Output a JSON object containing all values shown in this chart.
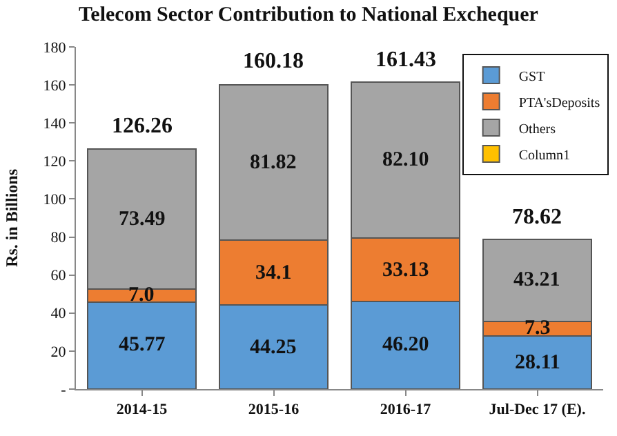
{
  "chart_data": {
    "type": "bar",
    "title": "Telecom Sector Contribution to National Exchequer",
    "ylabel": "Rs. in Billions",
    "categories": [
      "2014-15",
      "2015-16",
      "2016-17",
      "Jul-Dec 17 (E)."
    ],
    "stacked": true,
    "series": [
      {
        "name": "GST",
        "color": "#5b9bd5",
        "values": [
          45.77,
          44.25,
          46.2,
          28.11
        ],
        "value_labels": [
          "45.77",
          "44.25",
          "46.20",
          "28.11"
        ]
      },
      {
        "name": "PTA'sDeposits",
        "color": "#ed7d31",
        "values": [
          7.0,
          34.1,
          33.13,
          7.3
        ],
        "value_labels": [
          "7.0",
          "34.1",
          "33.13",
          "7.3"
        ]
      },
      {
        "name": "Others",
        "color": "#a5a5a5",
        "values": [
          73.49,
          81.82,
          82.1,
          43.21
        ],
        "value_labels": [
          "73.49",
          "81.82",
          "82.10",
          "43.21"
        ]
      },
      {
        "name": "Column1",
        "color": "#ffc000",
        "values": [
          null,
          null,
          null,
          null
        ]
      }
    ],
    "totals": [
      "126.26",
      "160.18",
      "161.43",
      "78.62"
    ],
    "ylim": [
      0,
      180
    ],
    "yticks": [
      {
        "value": 0,
        "label": "-"
      },
      20,
      40,
      60,
      80,
      100,
      120,
      140,
      160,
      180
    ],
    "legend": "top right"
  }
}
